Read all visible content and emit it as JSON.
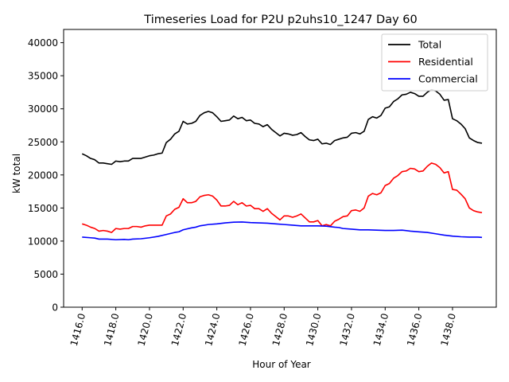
{
  "chart_data": {
    "type": "line",
    "title": "Timeseries Load for P2U p2uhs10_1247  Day 60",
    "xlabel": "Hour of Year",
    "ylabel": "kW total",
    "xlim": [
      1414.9,
      1440.6
    ],
    "ylim": [
      0,
      42000
    ],
    "x_ticks": [
      1416,
      1418,
      1420,
      1422,
      1424,
      1426,
      1428,
      1430,
      1432,
      1434,
      1436,
      1438
    ],
    "x_tick_labels": [
      "1416.0",
      "1418.0",
      "1420.0",
      "1422.0",
      "1424.0",
      "1426.0",
      "1428.0",
      "1430.0",
      "1432.0",
      "1434.0",
      "1436.0",
      "1438.0"
    ],
    "y_ticks": [
      0,
      5000,
      10000,
      15000,
      20000,
      25000,
      30000,
      35000,
      40000
    ],
    "y_tick_labels": [
      "0",
      "5000",
      "10000",
      "15000",
      "20000",
      "25000",
      "30000",
      "35000",
      "40000"
    ],
    "legend_position": "top-right",
    "series": [
      {
        "name": "Total",
        "color": "#000000",
        "points": [
          [
            1416.0,
            23200
          ],
          [
            1416.25,
            22900
          ],
          [
            1416.5,
            22500
          ],
          [
            1416.75,
            22300
          ],
          [
            1417.0,
            21800
          ],
          [
            1417.25,
            21800
          ],
          [
            1417.5,
            21700
          ],
          [
            1417.75,
            21600
          ],
          [
            1418.0,
            22100
          ],
          [
            1418.25,
            22000
          ],
          [
            1418.5,
            22100
          ],
          [
            1418.75,
            22100
          ],
          [
            1419.0,
            22500
          ],
          [
            1419.25,
            22500
          ],
          [
            1419.5,
            22500
          ],
          [
            1419.75,
            22700
          ],
          [
            1420.0,
            22900
          ],
          [
            1420.25,
            23000
          ],
          [
            1420.5,
            23200
          ],
          [
            1420.75,
            23300
          ],
          [
            1421.0,
            24900
          ],
          [
            1421.25,
            25400
          ],
          [
            1421.5,
            26200
          ],
          [
            1421.75,
            26600
          ],
          [
            1422.0,
            28100
          ],
          [
            1422.25,
            27700
          ],
          [
            1422.5,
            27800
          ],
          [
            1422.75,
            28100
          ],
          [
            1423.0,
            29000
          ],
          [
            1423.25,
            29400
          ],
          [
            1423.5,
            29600
          ],
          [
            1423.75,
            29400
          ],
          [
            1424.0,
            28800
          ],
          [
            1424.25,
            28100
          ],
          [
            1424.5,
            28200
          ],
          [
            1424.75,
            28300
          ],
          [
            1425.0,
            28900
          ],
          [
            1425.25,
            28500
          ],
          [
            1425.5,
            28700
          ],
          [
            1425.75,
            28200
          ],
          [
            1426.0,
            28300
          ],
          [
            1426.25,
            27800
          ],
          [
            1426.5,
            27700
          ],
          [
            1426.75,
            27300
          ],
          [
            1427.0,
            27600
          ],
          [
            1427.25,
            26900
          ],
          [
            1427.5,
            26400
          ],
          [
            1427.75,
            25900
          ],
          [
            1428.0,
            26300
          ],
          [
            1428.25,
            26200
          ],
          [
            1428.5,
            26000
          ],
          [
            1428.75,
            26100
          ],
          [
            1429.0,
            26400
          ],
          [
            1429.25,
            25800
          ],
          [
            1429.5,
            25300
          ],
          [
            1429.75,
            25200
          ],
          [
            1430.0,
            25400
          ],
          [
            1430.25,
            24700
          ],
          [
            1430.5,
            24800
          ],
          [
            1430.75,
            24600
          ],
          [
            1431.0,
            25200
          ],
          [
            1431.25,
            25400
          ],
          [
            1431.5,
            25600
          ],
          [
            1431.75,
            25700
          ],
          [
            1432.0,
            26300
          ],
          [
            1432.25,
            26400
          ],
          [
            1432.5,
            26200
          ],
          [
            1432.75,
            26600
          ],
          [
            1433.0,
            28400
          ],
          [
            1433.25,
            28800
          ],
          [
            1433.5,
            28600
          ],
          [
            1433.75,
            29000
          ],
          [
            1434.0,
            30100
          ],
          [
            1434.25,
            30300
          ],
          [
            1434.5,
            31100
          ],
          [
            1434.75,
            31500
          ],
          [
            1435.0,
            32100
          ],
          [
            1435.25,
            32200
          ],
          [
            1435.5,
            32500
          ],
          [
            1435.75,
            32300
          ],
          [
            1436.0,
            31900
          ],
          [
            1436.25,
            31900
          ],
          [
            1436.5,
            32500
          ],
          [
            1436.75,
            32900
          ],
          [
            1437.0,
            32700
          ],
          [
            1437.25,
            32200
          ],
          [
            1437.5,
            31300
          ],
          [
            1437.75,
            31400
          ],
          [
            1438.0,
            28500
          ],
          [
            1438.25,
            28200
          ],
          [
            1438.5,
            27700
          ],
          [
            1438.75,
            27000
          ],
          [
            1439.0,
            25600
          ],
          [
            1439.25,
            25200
          ],
          [
            1439.5,
            24900
          ],
          [
            1439.75,
            24800
          ]
        ]
      },
      {
        "name": "Residential",
        "color": "#ff0000",
        "points": [
          [
            1416.0,
            12600
          ],
          [
            1416.25,
            12400
          ],
          [
            1416.5,
            12100
          ],
          [
            1416.75,
            11900
          ],
          [
            1417.0,
            11500
          ],
          [
            1417.25,
            11600
          ],
          [
            1417.5,
            11500
          ],
          [
            1417.75,
            11300
          ],
          [
            1418.0,
            11900
          ],
          [
            1418.25,
            11800
          ],
          [
            1418.5,
            11900
          ],
          [
            1418.75,
            11900
          ],
          [
            1419.0,
            12200
          ],
          [
            1419.25,
            12200
          ],
          [
            1419.5,
            12100
          ],
          [
            1419.75,
            12300
          ],
          [
            1420.0,
            12400
          ],
          [
            1420.25,
            12400
          ],
          [
            1420.5,
            12400
          ],
          [
            1420.75,
            12400
          ],
          [
            1421.0,
            13800
          ],
          [
            1421.25,
            14100
          ],
          [
            1421.5,
            14800
          ],
          [
            1421.75,
            15100
          ],
          [
            1422.0,
            16400
          ],
          [
            1422.25,
            15800
          ],
          [
            1422.5,
            15800
          ],
          [
            1422.75,
            16000
          ],
          [
            1423.0,
            16700
          ],
          [
            1423.25,
            16900
          ],
          [
            1423.5,
            17000
          ],
          [
            1423.75,
            16800
          ],
          [
            1424.0,
            16200
          ],
          [
            1424.25,
            15300
          ],
          [
            1424.5,
            15300
          ],
          [
            1424.75,
            15400
          ],
          [
            1425.0,
            16000
          ],
          [
            1425.25,
            15500
          ],
          [
            1425.5,
            15800
          ],
          [
            1425.75,
            15300
          ],
          [
            1426.0,
            15400
          ],
          [
            1426.25,
            14900
          ],
          [
            1426.5,
            14900
          ],
          [
            1426.75,
            14500
          ],
          [
            1427.0,
            14900
          ],
          [
            1427.25,
            14200
          ],
          [
            1427.5,
            13700
          ],
          [
            1427.75,
            13200
          ],
          [
            1428.0,
            13800
          ],
          [
            1428.25,
            13800
          ],
          [
            1428.5,
            13600
          ],
          [
            1428.75,
            13800
          ],
          [
            1429.0,
            14100
          ],
          [
            1429.25,
            13500
          ],
          [
            1429.5,
            12900
          ],
          [
            1429.75,
            12900
          ],
          [
            1430.0,
            13100
          ],
          [
            1430.25,
            12300
          ],
          [
            1430.5,
            12500
          ],
          [
            1430.75,
            12300
          ],
          [
            1431.0,
            13000
          ],
          [
            1431.25,
            13300
          ],
          [
            1431.5,
            13700
          ],
          [
            1431.75,
            13800
          ],
          [
            1432.0,
            14600
          ],
          [
            1432.25,
            14700
          ],
          [
            1432.5,
            14500
          ],
          [
            1432.75,
            15000
          ],
          [
            1433.0,
            16800
          ],
          [
            1433.25,
            17200
          ],
          [
            1433.5,
            17000
          ],
          [
            1433.75,
            17300
          ],
          [
            1434.0,
            18400
          ],
          [
            1434.25,
            18700
          ],
          [
            1434.5,
            19500
          ],
          [
            1434.75,
            19900
          ],
          [
            1435.0,
            20500
          ],
          [
            1435.25,
            20600
          ],
          [
            1435.5,
            21000
          ],
          [
            1435.75,
            20900
          ],
          [
            1436.0,
            20500
          ],
          [
            1436.25,
            20600
          ],
          [
            1436.5,
            21300
          ],
          [
            1436.75,
            21800
          ],
          [
            1437.0,
            21600
          ],
          [
            1437.25,
            21100
          ],
          [
            1437.5,
            20300
          ],
          [
            1437.75,
            20500
          ],
          [
            1438.0,
            17800
          ],
          [
            1438.25,
            17700
          ],
          [
            1438.5,
            17100
          ],
          [
            1438.75,
            16400
          ],
          [
            1439.0,
            15000
          ],
          [
            1439.25,
            14600
          ],
          [
            1439.5,
            14400
          ],
          [
            1439.75,
            14300
          ]
        ]
      },
      {
        "name": "Commercial",
        "color": "#0000ff",
        "points": [
          [
            1416.0,
            10600
          ],
          [
            1416.5,
            10500
          ],
          [
            1416.75,
            10450
          ],
          [
            1417.0,
            10300
          ],
          [
            1417.5,
            10300
          ],
          [
            1418.0,
            10200
          ],
          [
            1418.5,
            10250
          ],
          [
            1418.75,
            10200
          ],
          [
            1419.0,
            10300
          ],
          [
            1419.5,
            10350
          ],
          [
            1420.0,
            10500
          ],
          [
            1420.5,
            10700
          ],
          [
            1421.0,
            11000
          ],
          [
            1421.5,
            11300
          ],
          [
            1421.75,
            11400
          ],
          [
            1422.0,
            11700
          ],
          [
            1422.5,
            12000
          ],
          [
            1422.75,
            12100
          ],
          [
            1423.0,
            12300
          ],
          [
            1423.5,
            12500
          ],
          [
            1424.0,
            12600
          ],
          [
            1424.5,
            12750
          ],
          [
            1425.0,
            12850
          ],
          [
            1425.5,
            12880
          ],
          [
            1426.0,
            12800
          ],
          [
            1426.5,
            12750
          ],
          [
            1427.0,
            12700
          ],
          [
            1427.5,
            12600
          ],
          [
            1428.0,
            12500
          ],
          [
            1428.5,
            12400
          ],
          [
            1429.0,
            12300
          ],
          [
            1429.5,
            12300
          ],
          [
            1430.0,
            12300
          ],
          [
            1430.5,
            12250
          ],
          [
            1431.0,
            12100
          ],
          [
            1431.25,
            12050
          ],
          [
            1431.5,
            11900
          ],
          [
            1432.0,
            11800
          ],
          [
            1432.5,
            11700
          ],
          [
            1433.0,
            11700
          ],
          [
            1433.5,
            11650
          ],
          [
            1434.0,
            11600
          ],
          [
            1434.5,
            11600
          ],
          [
            1435.0,
            11650
          ],
          [
            1435.5,
            11500
          ],
          [
            1436.0,
            11400
          ],
          [
            1436.5,
            11300
          ],
          [
            1437.0,
            11100
          ],
          [
            1437.5,
            10900
          ],
          [
            1438.0,
            10750
          ],
          [
            1438.5,
            10650
          ],
          [
            1439.0,
            10600
          ],
          [
            1439.5,
            10600
          ],
          [
            1439.75,
            10550
          ]
        ]
      }
    ]
  }
}
